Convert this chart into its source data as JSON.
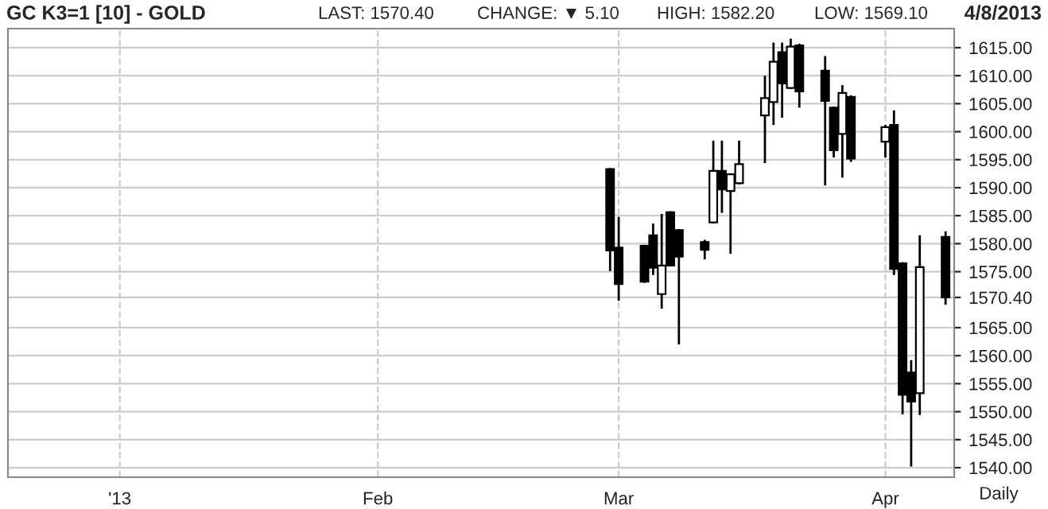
{
  "chart_data": {
    "type": "candlestick",
    "title": "GC K3=1 [10] - GOLD",
    "annotations": [
      "LAST: 1570.40",
      "CHANGE: ▼ 5.10",
      "HIGH: 1582.20",
      "LOW: 1569.10",
      "4/8/2013",
      "Daily"
    ],
    "x": [
      "2013-02-28",
      "2013-03-01",
      "2013-03-04",
      "2013-03-05",
      "2013-03-06",
      "2013-03-07",
      "2013-03-08",
      "2013-03-11",
      "2013-03-12",
      "2013-03-13",
      "2013-03-14",
      "2013-03-15",
      "2013-03-18",
      "2013-03-19",
      "2013-03-20",
      "2013-03-21",
      "2013-03-22",
      "2013-03-25",
      "2013-03-26",
      "2013-03-27",
      "2013-03-28",
      "2013-04-01",
      "2013-04-02",
      "2013-04-03",
      "2013-04-04",
      "2013-04-05",
      "2013-04-08"
    ],
    "ohlc": [
      [
        1593.3,
        1593.5,
        1575.1,
        1578.8
      ],
      [
        1579.3,
        1584.8,
        1569.8,
        1572.8
      ],
      [
        1579.6,
        1579.8,
        1573.0,
        1573.2
      ],
      [
        1581.5,
        1583.6,
        1574.4,
        1575.7
      ],
      [
        1571.0,
        1585.3,
        1568.4,
        1576.1
      ],
      [
        1585.6,
        1585.8,
        1576.0,
        1576.1
      ],
      [
        1582.4,
        1582.6,
        1562.0,
        1577.7
      ],
      [
        1580.3,
        1580.7,
        1577.2,
        1578.9
      ],
      [
        1583.8,
        1598.4,
        1583.6,
        1593.0
      ],
      [
        1593.0,
        1598.4,
        1585.5,
        1589.7
      ],
      [
        1589.4,
        1592.4,
        1578.2,
        1592.4
      ],
      [
        1590.8,
        1598.4,
        1590.6,
        1594.2
      ],
      [
        1602.9,
        1610.0,
        1594.4,
        1606.0
      ],
      [
        1605.3,
        1615.9,
        1601.2,
        1612.5
      ],
      [
        1614.2,
        1615.9,
        1602.5,
        1608.6
      ],
      [
        1607.8,
        1616.6,
        1607.6,
        1615.2
      ],
      [
        1615.4,
        1615.7,
        1604.3,
        1607.2
      ],
      [
        1610.9,
        1613.5,
        1590.4,
        1605.5
      ],
      [
        1604.3,
        1604.5,
        1595.4,
        1596.7
      ],
      [
        1599.6,
        1608.3,
        1591.8,
        1606.9
      ],
      [
        1606.2,
        1606.5,
        1594.6,
        1595.2
      ],
      [
        1598.2,
        1601.2,
        1595.4,
        1600.8
      ],
      [
        1601.2,
        1603.8,
        1574.4,
        1575.5
      ],
      [
        1576.5,
        1576.7,
        1549.5,
        1553.0
      ],
      [
        1557.0,
        1559.2,
        1540.2,
        1551.8
      ],
      [
        1553.3,
        1581.5,
        1549.4,
        1575.8
      ],
      [
        1581.2,
        1582.2,
        1569.1,
        1570.4
      ]
    ],
    "xlim": [
      "2012-12-20",
      "2013-04-09"
    ],
    "xticks": [
      {
        "value": "2013-01-02",
        "label": "'13"
      },
      {
        "value": "2013-02-01",
        "label": "Feb"
      },
      {
        "value": "2013-03-01",
        "label": "Mar"
      },
      {
        "value": "2013-04-01",
        "label": "Apr"
      }
    ],
    "ylim": [
      1538.3,
      1618.4
    ],
    "yticks": [
      {
        "value": 1540,
        "label": "1540.00"
      },
      {
        "value": 1545,
        "label": "1545.00"
      },
      {
        "value": 1550,
        "label": "1550.00"
      },
      {
        "value": 1555,
        "label": "1555.00"
      },
      {
        "value": 1560,
        "label": "1560.00"
      },
      {
        "value": 1565,
        "label": "1565.00"
      },
      {
        "value": 1570.4,
        "label": "1570.40"
      },
      {
        "value": 1575,
        "label": "1575.00"
      },
      {
        "value": 1580,
        "label": "1580.00"
      },
      {
        "value": 1585,
        "label": "1585.00"
      },
      {
        "value": 1590,
        "label": "1590.00"
      },
      {
        "value": 1595,
        "label": "1595.00"
      },
      {
        "value": 1600,
        "label": "1600.00"
      },
      {
        "value": 1605,
        "label": "1605.00"
      },
      {
        "value": 1610,
        "label": "1610.00"
      },
      {
        "value": 1615,
        "label": "1615.00"
      }
    ],
    "grid": true
  }
}
